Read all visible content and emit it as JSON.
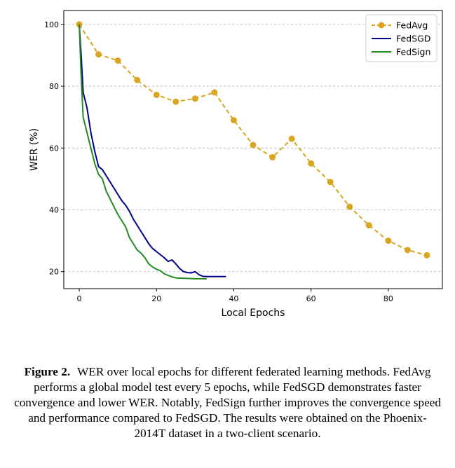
{
  "chart_data": {
    "type": "line",
    "xlabel": "Local Epochs",
    "ylabel": "WER (%)",
    "xlim": [
      -4,
      94
    ],
    "ylim": [
      14.5,
      104.5
    ],
    "xticks": [
      0,
      20,
      40,
      60,
      80
    ],
    "yticks": [
      20,
      40,
      60,
      80,
      100
    ],
    "grid": "horizontal dashed",
    "legend_position": "top-right",
    "series": [
      {
        "name": "FedAvg",
        "color": "#DAA520",
        "style": "dashed",
        "marker": "circle",
        "x": [
          0,
          5,
          10,
          15,
          20,
          25,
          30,
          35,
          40,
          45,
          50,
          55,
          60,
          65,
          70,
          75,
          80,
          85,
          90
        ],
        "y": [
          100,
          90.3,
          88.3,
          82,
          77.2,
          75,
          76,
          78,
          69,
          61,
          57,
          63,
          55,
          49,
          41,
          35,
          30,
          27,
          25.3
        ]
      },
      {
        "name": "FedSGD",
        "color": "#00008B",
        "style": "solid",
        "marker": "none",
        "x": [
          0,
          0.5,
          1,
          2,
          3,
          4,
          5,
          6,
          7,
          8,
          9,
          10,
          11,
          12,
          13,
          14,
          15,
          16,
          17,
          18,
          19,
          20,
          21,
          22,
          23,
          24,
          25,
          26,
          27,
          28,
          29,
          30,
          31,
          32,
          33,
          35,
          38
        ],
        "y": [
          100,
          90,
          78,
          73,
          65,
          59,
          54,
          53,
          51,
          49,
          47,
          45,
          43,
          41.5,
          39.5,
          37,
          35,
          33,
          31,
          29,
          27.5,
          26.5,
          25.5,
          24.5,
          23.3,
          23.8,
          22.5,
          21,
          20,
          19.7,
          19.6,
          20,
          19,
          18.5,
          18.4,
          18.4,
          18.4
        ]
      },
      {
        "name": "FedSign",
        "color": "#228B22",
        "style": "solid",
        "marker": "none",
        "x": [
          0,
          0.5,
          1,
          2,
          3,
          4,
          5,
          6,
          7,
          8,
          9,
          10,
          11,
          12,
          13,
          14,
          15,
          16,
          17,
          18,
          19,
          20,
          21,
          22,
          23,
          24,
          25,
          26,
          28,
          30,
          33
        ],
        "y": [
          100,
          83,
          70,
          65,
          60,
          55,
          51.5,
          50,
          46,
          43.5,
          41,
          38.5,
          36.5,
          34.5,
          31,
          29,
          27,
          26,
          24.5,
          22.5,
          21.5,
          20.8,
          20.3,
          19.3,
          18.8,
          18.3,
          18,
          17.9,
          17.8,
          17.7,
          17.7
        ]
      }
    ]
  },
  "caption": {
    "label": "Figure 2.",
    "text": "WER over local epochs for different federated learning methods. FedAvg performs a global model test every 5 epochs, while FedSGD demonstrates faster convergence and lower WER. Notably, FedSign further improves the convergence speed and performance compared to FedSGD. The results were obtained on the Phoenix-2014T dataset in a two-client scenario."
  }
}
